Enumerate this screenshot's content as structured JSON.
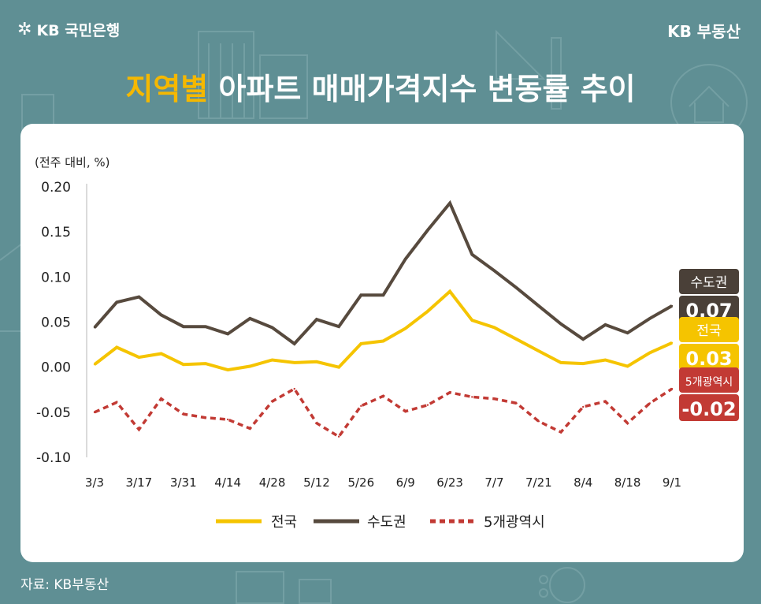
{
  "brand": {
    "bank_name": "KB 국민은행",
    "site_name": "KB 부동산"
  },
  "title": {
    "highlight": "지역별",
    "rest": " 아파트 매매가격지수 변동률 추이"
  },
  "source": "자료: KB부동산",
  "colors": {
    "background": "#5f8f94",
    "national": "#f5c400",
    "capital": "#574a3e",
    "metro": "#c23a34",
    "title_highlight": "#f5b800"
  },
  "chart_data": {
    "type": "line",
    "unit_label": "(전주 대비, %)",
    "x": [
      "3/3",
      "3/10",
      "3/17",
      "3/24",
      "3/31",
      "4/7",
      "4/14",
      "4/21",
      "4/28",
      "5/5",
      "5/12",
      "5/19",
      "5/26",
      "6/2",
      "6/9",
      "6/16",
      "6/23",
      "6/30",
      "7/7",
      "7/14",
      "7/21",
      "7/28",
      "8/4",
      "8/11",
      "8/18",
      "8/25",
      "9/1"
    ],
    "x_tick_labels": [
      "3/3",
      "3/17",
      "3/31",
      "4/14",
      "4/28",
      "5/12",
      "5/26",
      "6/9",
      "6/23",
      "7/7",
      "7/21",
      "8/4",
      "8/18",
      "9/1"
    ],
    "y_tick_labels": [
      "0.20",
      "0.15",
      "0.10",
      "0.05",
      "0.00",
      "-0.05",
      "-0.10"
    ],
    "ylim": [
      -0.1,
      0.2
    ],
    "grid": false,
    "legend_position": "bottom",
    "series": [
      {
        "name": "전국",
        "style": "solid",
        "color": "#f5c400",
        "values": [
          0.003,
          0.022,
          0.011,
          0.015,
          0.003,
          0.004,
          -0.003,
          0.001,
          0.008,
          0.005,
          0.006,
          0.0,
          0.026,
          0.029,
          0.043,
          0.062,
          0.084,
          0.052,
          0.044,
          0.031,
          0.018,
          0.005,
          0.004,
          0.008,
          0.001,
          0.016,
          0.027
        ],
        "end_label": {
          "name": "전국",
          "value": "0.03"
        }
      },
      {
        "name": "수도권",
        "style": "solid",
        "color": "#574a3e",
        "values": [
          0.044,
          0.072,
          0.078,
          0.058,
          0.045,
          0.045,
          0.037,
          0.054,
          0.044,
          0.026,
          0.053,
          0.045,
          0.08,
          0.08,
          0.12,
          0.152,
          0.182,
          0.125,
          0.107,
          0.088,
          0.068,
          0.048,
          0.031,
          0.047,
          0.038,
          0.054,
          0.068
        ],
        "end_label": {
          "name": "수도권",
          "value": "0.07"
        }
      },
      {
        "name": "5개광역시",
        "style": "dashed",
        "color": "#c23a34",
        "values": [
          -0.05,
          -0.039,
          -0.069,
          -0.035,
          -0.052,
          -0.056,
          -0.058,
          -0.068,
          -0.038,
          -0.024,
          -0.062,
          -0.077,
          -0.043,
          -0.032,
          -0.049,
          -0.042,
          -0.028,
          -0.033,
          -0.035,
          -0.04,
          -0.06,
          -0.072,
          -0.044,
          -0.038,
          -0.062,
          -0.04,
          -0.024
        ],
        "end_label": {
          "name": "5개광역시",
          "value": "-0.02"
        }
      }
    ]
  }
}
